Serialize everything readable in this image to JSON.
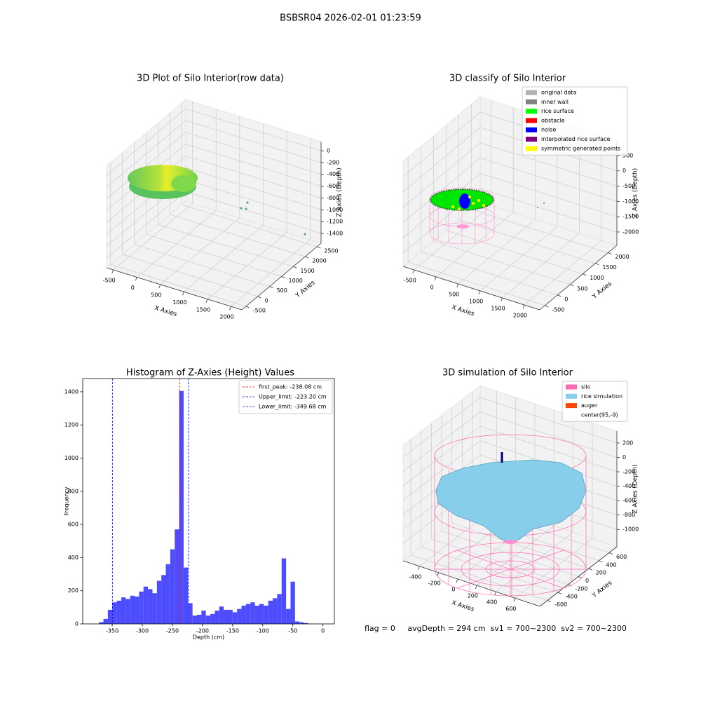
{
  "title": "BSBSR04 2026-02-01 01:23:59",
  "status": "flag = 0     avgDepth = 294 cm  sv1 = 700~2300  sv2 = 700~2300",
  "chart_data": [
    {
      "type": "scatter3d",
      "title": "3D Plot of Silo Interior(row data)",
      "xlabel": "X Axies",
      "ylabel": "Y Axies",
      "zlabel": "Z Axies (Depth)",
      "xlim": [
        -644,
        2230
      ],
      "ylim": [
        -670,
        2670
      ],
      "zlim": [
        -1567,
        155
      ],
      "xticks": [
        -500,
        0,
        500,
        1000,
        1500,
        2000
      ],
      "yticks": [
        -500,
        0,
        500,
        1000,
        1500,
        2000,
        2500
      ],
      "zticks": [
        -1400,
        -1200,
        -1000,
        -800,
        -600,
        -400,
        -200,
        0
      ]
    },
    {
      "type": "scatter3d",
      "title": "3D classify of Silo Interior",
      "xlabel": "X Axies",
      "ylabel": "Y Axies",
      "zlabel": "Z Axies (Depth)",
      "xlim": [
        -750,
        2350
      ],
      "ylim": [
        -700,
        2350
      ],
      "zlim": [
        -2437,
        1003
      ],
      "xticks": [
        -500,
        0,
        500,
        1000,
        1500,
        2000
      ],
      "yticks": [
        -500,
        0,
        500,
        1000,
        1500,
        2000
      ],
      "zticks": [
        -2000,
        -1500,
        -1000,
        -500,
        0,
        500
      ],
      "legend": [
        {
          "name": "original data",
          "color": "#b0b0b0"
        },
        {
          "name": "inner wall",
          "color": "#808080"
        },
        {
          "name": "rice surface",
          "color": "#00ff00"
        },
        {
          "name": "obstacle",
          "color": "#ff0000"
        },
        {
          "name": "noise",
          "color": "#0000ff"
        },
        {
          "name": "interpolated rice surface",
          "color": "#800080"
        },
        {
          "name": "symmetric generated points",
          "color": "#ffff00"
        }
      ]
    },
    {
      "type": "histogram",
      "title": "Histogram of Z-Axies (Height) Values",
      "xlabel": "Depth (cm)",
      "ylabel": "Frequency",
      "color": "#4d4dff",
      "bins": [
        -372,
        -364.6,
        -357.2,
        -349.8,
        -342.4,
        -335,
        -327.6,
        -320.2,
        -312.8,
        -305.4,
        -298,
        -290.6,
        -283.2,
        -275.8,
        -268.4,
        -261,
        -253.6,
        -246.2,
        -238.8,
        -231.4,
        -224,
        -216.6,
        -209.2,
        -201.8,
        -194.4,
        -187,
        -179.6,
        -172.2,
        -164.8,
        -157.4,
        -150,
        -142.6,
        -135.2,
        -127.8,
        -120.4,
        -113,
        -105.6,
        -98.2,
        -90.8,
        -83.4,
        -76,
        -68.6,
        -61.2,
        -53.8,
        -46.4,
        -39,
        -31.6,
        -24.2
      ],
      "values": [
        10,
        30,
        85,
        130,
        140,
        160,
        150,
        170,
        165,
        195,
        225,
        210,
        185,
        260,
        295,
        360,
        450,
        570,
        1405,
        340,
        125,
        50,
        55,
        80,
        50,
        60,
        80,
        105,
        85,
        85,
        70,
        90,
        110,
        120,
        130,
        110,
        120,
        110,
        140,
        155,
        180,
        395,
        90,
        255,
        15,
        10,
        5
      ],
      "xlim": [
        -399,
        19
      ],
      "ylim": [
        0,
        1480
      ],
      "xticks": [
        -350,
        -300,
        -250,
        -200,
        -150,
        -100,
        -50,
        0
      ],
      "yticks": [
        0,
        200,
        400,
        600,
        800,
        1000,
        1200,
        1400
      ],
      "lines": [
        {
          "label": "first_peak: -238.08 cm",
          "value": -238.08,
          "color": "#ff0000"
        },
        {
          "label": "Upper_limit: -223.20 cm",
          "value": -223.2,
          "color": "#0000ff"
        },
        {
          "label": "Lower_limit: -349.68 cm",
          "value": -349.68,
          "color": "#0000ff"
        }
      ],
      "legend_position": "upper right"
    },
    {
      "type": "surface3d",
      "title": "3D simulation of Silo Interior",
      "xlabel": "X Axies",
      "ylabel": "Y Axies",
      "zlabel": "Z Axies (Depth)",
      "xlim": [
        -571,
        857
      ],
      "ylim": [
        -750,
        750
      ],
      "zlim": [
        -1241,
        365
      ],
      "xticks": [
        -400,
        -200,
        0,
        200,
        400,
        600
      ],
      "yticks": [
        -600,
        -400,
        -200,
        0,
        200,
        400,
        600
      ],
      "zticks": [
        -1000,
        -800,
        -600,
        -400,
        -200,
        0,
        200
      ],
      "legend": [
        {
          "name": "silo",
          "color": "#ff69b4"
        },
        {
          "name": "rice simulation",
          "color": "#87ceeb"
        },
        {
          "name": "auger",
          "color": "#ff4500"
        },
        {
          "name": "center(95,-9)",
          "color": "#ffffff"
        }
      ]
    }
  ]
}
